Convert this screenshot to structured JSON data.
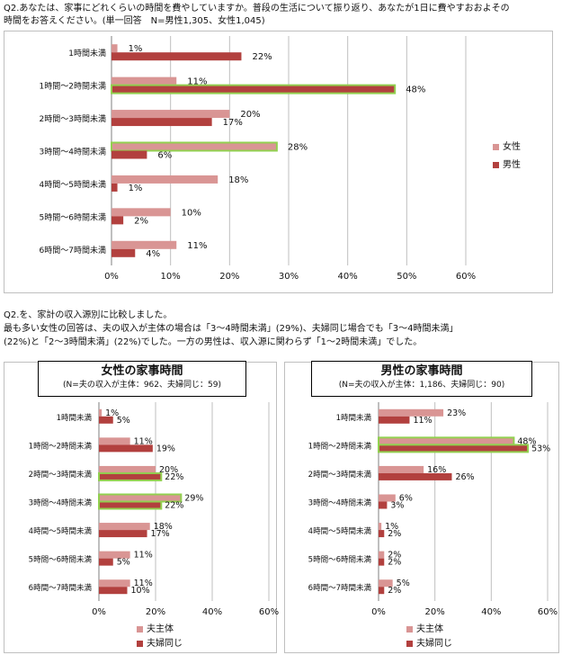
{
  "question1": {
    "lines": [
      "Q2.あなたは、家事にどれくらいの時間を費やしていますか。普段の生活について振り返り、あなたが1日に費やすおおよその",
      "時間をお答えください。(単一回答　N=男性1,305、女性1,045)"
    ]
  },
  "question2": {
    "lines": [
      "Q2.を、家計の収入源別に比較しました。",
      "最も多い女性の回答は、夫の収入が主体の場合は「3〜4時間未満」(29%)、夫婦同じ場合でも「3〜4時間未満」",
      "(22%)と「2〜3時間未満」(22%)でした。一方の男性は、収入源に関わらず「1〜2時間未満」でした。"
    ]
  },
  "panel_women": {
    "title": "女性の家事時間",
    "subtitle": "(N=夫の収入が主体：962、夫婦同じ：59)"
  },
  "panel_men": {
    "title": "男性の家事時間",
    "subtitle": "(N=夫の収入が主体：1,186、夫婦同じ：90)"
  },
  "colors": {
    "light": "#D99594",
    "dark": "#B2403E",
    "highlight": "#92D050",
    "grid": "#BFBFBF"
  },
  "chart_data": [
    {
      "type": "bar",
      "orientation": "horizontal",
      "categories": [
        "1時間未満",
        "1時間〜2時間未満",
        "2時間〜3時間未満",
        "3時間〜4時間未満",
        "4時間〜5時間未満",
        "5時間〜6時間未満",
        "6時間〜7時間未満"
      ],
      "series": [
        {
          "name": "女性",
          "values": [
            1,
            11,
            20,
            28,
            18,
            10,
            11
          ]
        },
        {
          "name": "男性",
          "values": [
            22,
            48,
            17,
            6,
            1,
            2,
            4
          ]
        }
      ],
      "highlight": [
        [
          1,
          1
        ],
        [
          0,
          3
        ]
      ],
      "xlim": [
        0,
        60
      ],
      "xticks": [
        "0%",
        "10%",
        "20%",
        "30%",
        "40%",
        "50%",
        "60%"
      ],
      "legend": [
        "女性",
        "男性"
      ]
    },
    {
      "type": "bar",
      "orientation": "horizontal",
      "title": "女性の家事時間",
      "categories": [
        "1時間未満",
        "1時間〜2時間未満",
        "2時間〜3時間未満",
        "3時間〜4時間未満",
        "4時間〜5時間未満",
        "5時間〜6時間未満",
        "6時間〜7時間未満"
      ],
      "series": [
        {
          "name": "夫主体",
          "values": [
            1,
            11,
            20,
            29,
            18,
            11,
            11
          ]
        },
        {
          "name": "夫婦同じ",
          "values": [
            5,
            19,
            22,
            22,
            17,
            5,
            10
          ]
        }
      ],
      "highlight": [
        [
          0,
          3
        ],
        [
          1,
          2
        ],
        [
          1,
          3
        ]
      ],
      "xlim": [
        0,
        60
      ],
      "xticks": [
        "0%",
        "20%",
        "40%",
        "60%"
      ],
      "legend": [
        "夫主体",
        "夫婦同じ"
      ]
    },
    {
      "type": "bar",
      "orientation": "horizontal",
      "title": "男性の家事時間",
      "categories": [
        "1時間未満",
        "1時間〜2時間未満",
        "2時間〜3時間未満",
        "3時間〜4時間未満",
        "4時間〜5時間未満",
        "5時間〜6時間未満",
        "6時間〜7時間未満"
      ],
      "series": [
        {
          "name": "夫主体",
          "values": [
            23,
            48,
            16,
            6,
            1,
            2,
            5
          ]
        },
        {
          "name": "夫婦同じ",
          "values": [
            11,
            53,
            26,
            3,
            2,
            2,
            2
          ]
        }
      ],
      "highlight": [
        [
          0,
          1
        ],
        [
          1,
          1
        ]
      ],
      "xlim": [
        0,
        60
      ],
      "xticks": [
        "0%",
        "20%",
        "40%",
        "60%"
      ],
      "legend": [
        "夫主体",
        "夫婦同じ"
      ]
    }
  ]
}
